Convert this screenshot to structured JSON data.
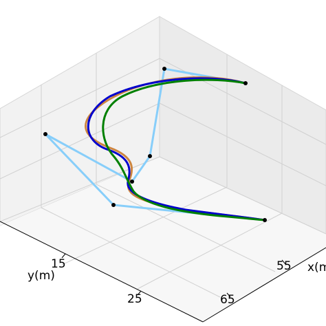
{
  "chart_data": {
    "type": "line",
    "projection": "3d",
    "title": "",
    "xlabel": "x(m)",
    "ylabel": "y(m)",
    "zlabel": "",
    "x_ticks": [
      "55",
      "65"
    ],
    "y_ticks": [
      "15",
      "25"
    ],
    "grid": true,
    "legend": "none",
    "control_points": [
      {
        "x": 60,
        "y": 22
      },
      {
        "x": 56,
        "y": 13
      },
      {
        "x": 53,
        "y": 18
      },
      {
        "x": 46,
        "y": 16
      },
      {
        "x": 44,
        "y": 8
      },
      {
        "x": 38,
        "y": 10
      },
      {
        "x": 45,
        "y": 20
      }
    ],
    "series": [
      {
        "color": "#87cefa",
        "points": [
          [
            60,
            22
          ],
          [
            56,
            13
          ],
          [
            53,
            18
          ],
          [
            46,
            16
          ],
          [
            44,
            8
          ],
          [
            38,
            10
          ],
          [
            45,
            20
          ]
        ]
      },
      {
        "color": "#cd853f",
        "points": [
          [
            60,
            22
          ],
          [
            55.5,
            16.5
          ],
          [
            52.5,
            16
          ],
          [
            50,
            15.5
          ],
          [
            47,
            14
          ],
          [
            44.5,
            11
          ],
          [
            43,
            9.5
          ],
          [
            41,
            10
          ],
          [
            39.5,
            12.5
          ],
          [
            40,
            15.5
          ],
          [
            42.5,
            18.5
          ],
          [
            45,
            20
          ]
        ]
      },
      {
        "color": "#0000cd",
        "points": [
          [
            60,
            22
          ],
          [
            55.5,
            17
          ],
          [
            52.5,
            16.4
          ],
          [
            50,
            15.5
          ],
          [
            47.3,
            14.2
          ],
          [
            45,
            11.8
          ],
          [
            43.5,
            10.5
          ],
          [
            41.8,
            10.8
          ],
          [
            40.6,
            13
          ],
          [
            41.2,
            15.8
          ],
          [
            43.2,
            18.7
          ],
          [
            45,
            20
          ]
        ]
      },
      {
        "color": "#008000",
        "points": [
          [
            60,
            22
          ],
          [
            55.5,
            17.3
          ],
          [
            52.5,
            16.5
          ],
          [
            50,
            15.8
          ],
          [
            47.5,
            14.8
          ],
          [
            46,
            13.5
          ],
          [
            45,
            12.5
          ],
          [
            43.8,
            12.3
          ],
          [
            43,
            13.7
          ],
          [
            43.3,
            16.2
          ],
          [
            44,
            18.8
          ],
          [
            45,
            20
          ]
        ]
      }
    ]
  }
}
